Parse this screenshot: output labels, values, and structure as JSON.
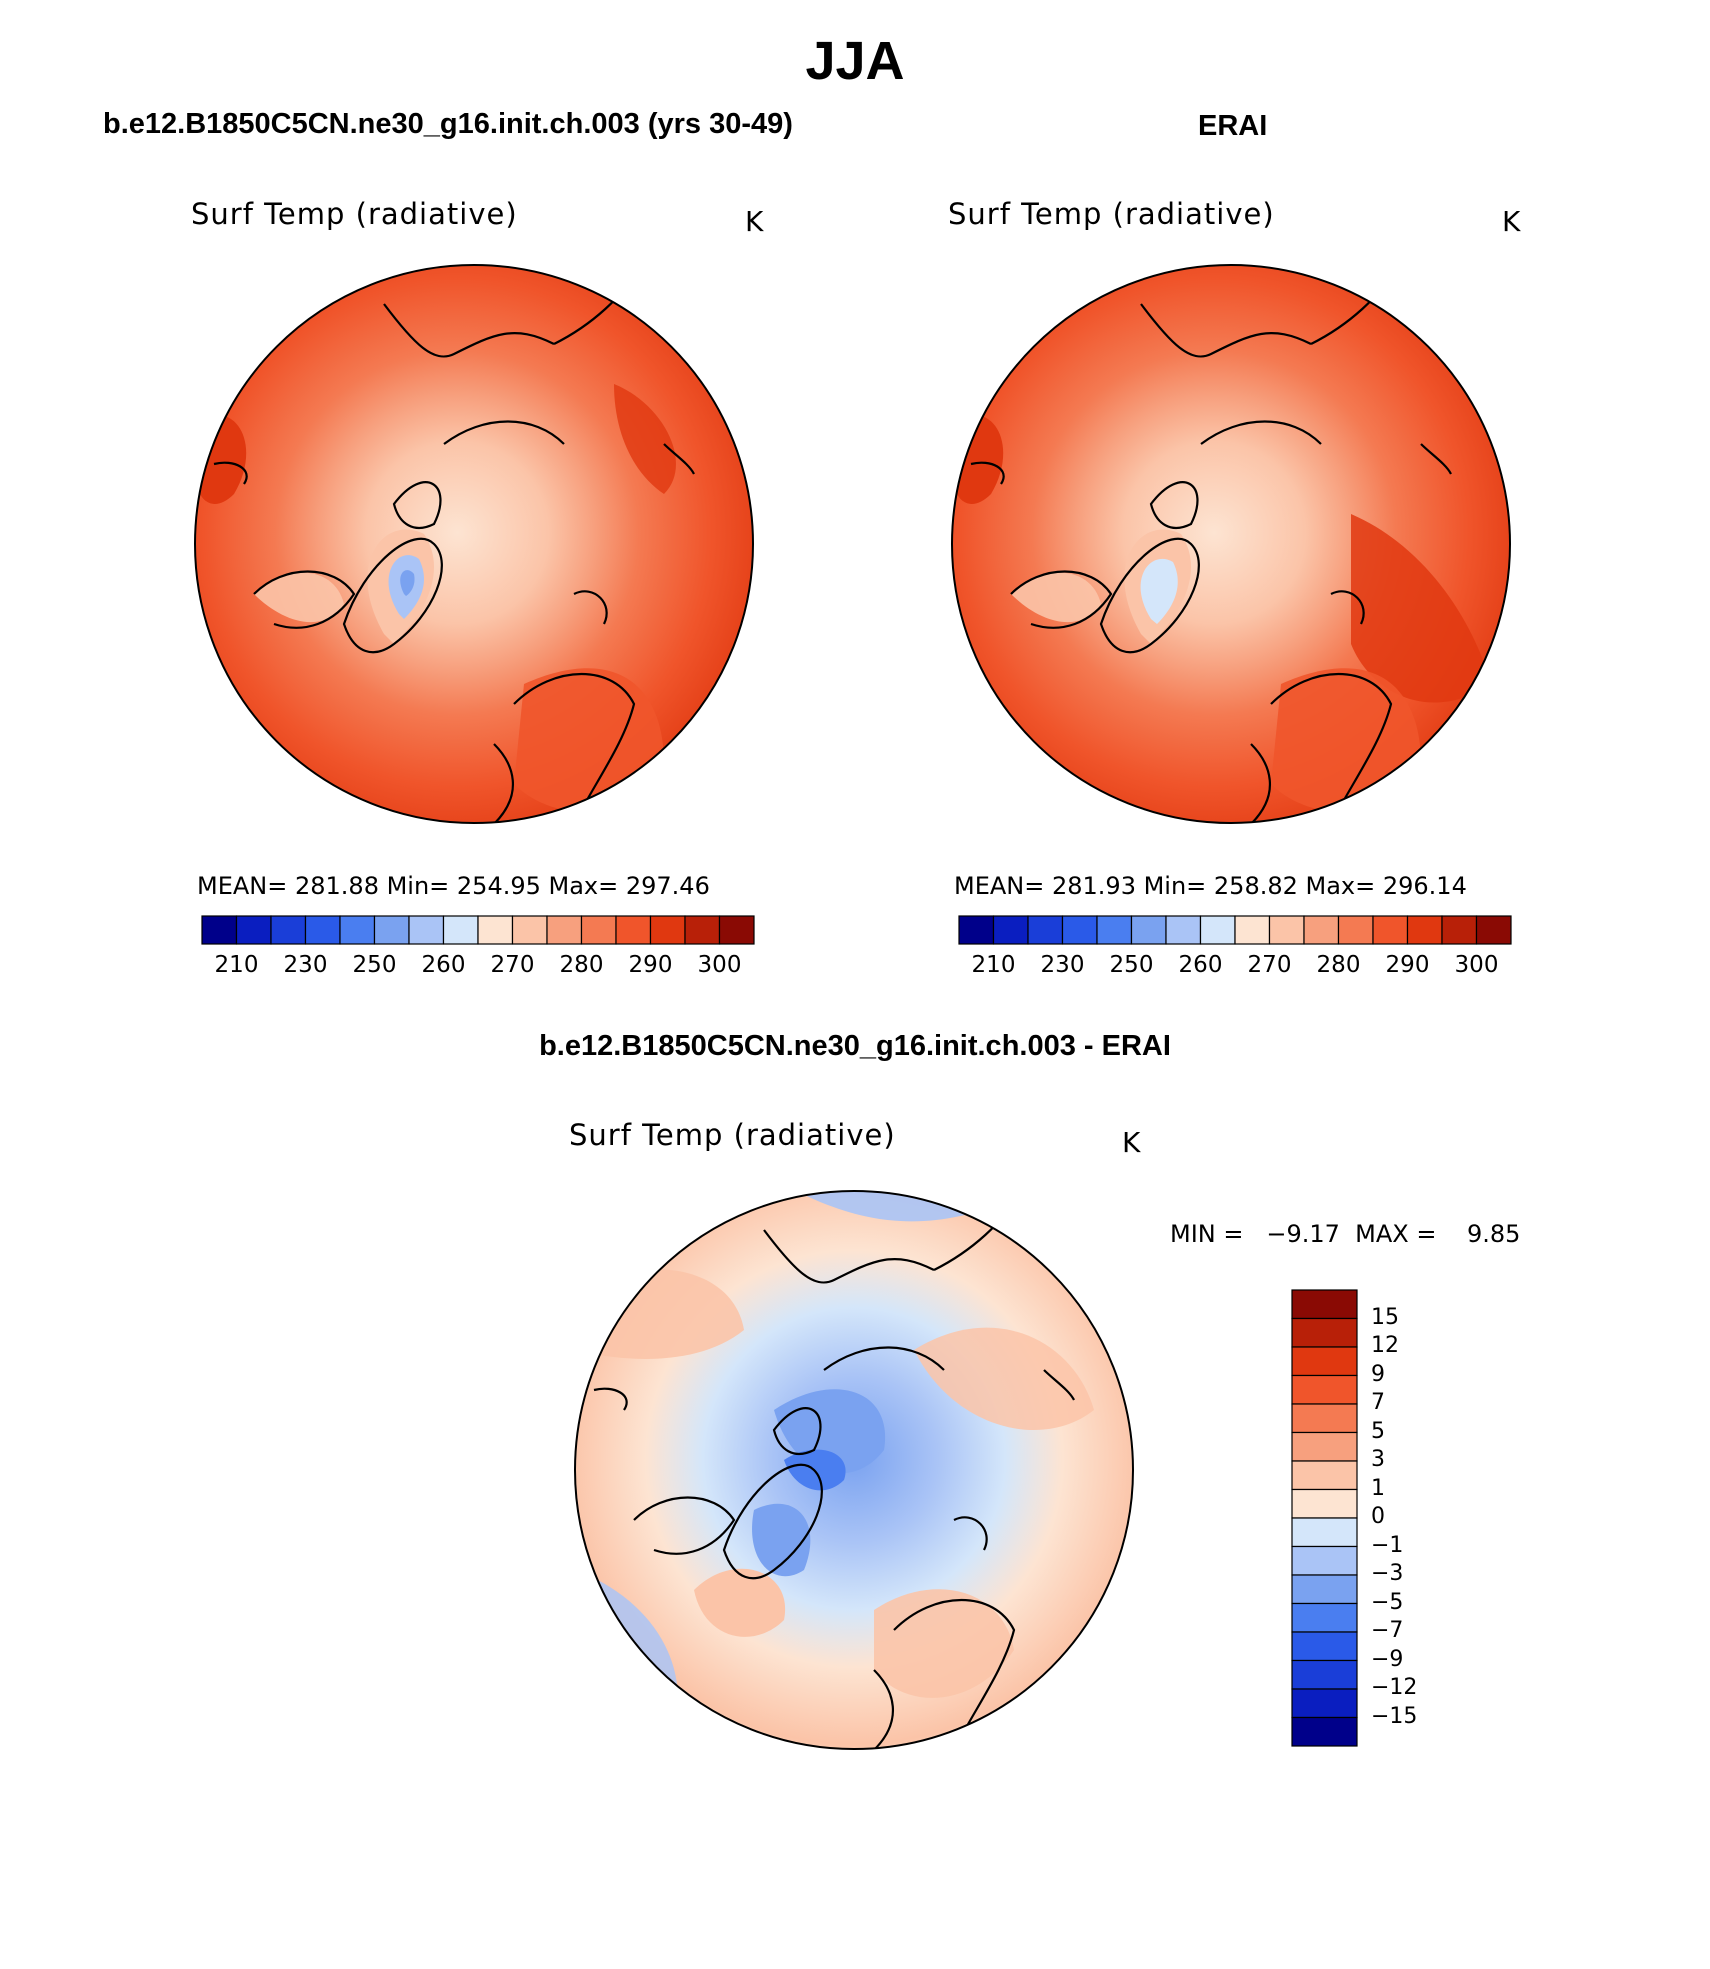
{
  "figure": {
    "title": "JJA"
  },
  "panels": [
    {
      "title": "b.e12.B1850C5CN.ne30_g16.init.ch.003 (yrs 30-49)",
      "variable": "Surf Temp (radiative)",
      "units": "K",
      "stats": "MEAN= 281.88   Min= 254.95   Max= 297.46"
    },
    {
      "title": "ERAI",
      "variable": "Surf Temp (radiative)",
      "units": "K",
      "stats": "MEAN= 281.93   Min= 258.82   Max= 296.14"
    },
    {
      "title": "b.e12.B1850C5CN.ne30_g16.init.ch.003 - ERAI",
      "variable": "Surf Temp (radiative)",
      "units": "K",
      "stats": "MIN =   −9.17  MAX =    9.85"
    }
  ],
  "colorbars": {
    "absolute": {
      "orientation": "horizontal",
      "tick_labels": [
        "210",
        "230",
        "250",
        "260",
        "270",
        "280",
        "290",
        "300"
      ],
      "colors": [
        "#00008a",
        "#0a1ec0",
        "#1a3ed8",
        "#2a5ae8",
        "#4a7ef0",
        "#7aa2f0",
        "#aac4f6",
        "#d4e6fa",
        "#fde4d2",
        "#fbc4a8",
        "#f7a07e",
        "#f47a52",
        "#f0552b",
        "#e03810",
        "#b82008",
        "#8a0a04"
      ]
    },
    "difference": {
      "orientation": "vertical",
      "tick_labels": [
        "15",
        "12",
        "9",
        "7",
        "5",
        "3",
        "1",
        "0",
        "−1",
        "−3",
        "−5",
        "−7",
        "−9",
        "−12",
        "−15"
      ],
      "colors": [
        "#8a0a04",
        "#b82008",
        "#e03810",
        "#f0552b",
        "#f47a52",
        "#f7a07e",
        "#fbc4a8",
        "#fde4d2",
        "#d4e6fa",
        "#aac4f6",
        "#7aa2f0",
        "#4a7ef0",
        "#2a5ae8",
        "#1a3ed8",
        "#0a1ec0",
        "#00008a"
      ]
    }
  },
  "chart_data": {
    "type": "heatmap",
    "projection": "north polar stereographic",
    "season": "JJA",
    "variable": "Surf Temp (radiative)",
    "units": "K",
    "maps": [
      {
        "name": "b.e12.B1850C5CN.ne30_g16.init.ch.003 (yrs 30-49)",
        "mean": 281.88,
        "min": 254.95,
        "max": 297.46
      },
      {
        "name": "ERAI",
        "mean": 281.93,
        "min": 258.82,
        "max": 296.14
      },
      {
        "name": "b.e12.B1850C5CN.ne30_g16.init.ch.003 - ERAI",
        "min": -9.17,
        "max": 9.85
      }
    ],
    "levels_absolute": [
      210,
      220,
      230,
      240,
      250,
      255,
      260,
      265,
      270,
      275,
      280,
      285,
      290,
      295,
      300
    ],
    "levels_difference": [
      -15,
      -12,
      -9,
      -7,
      -5,
      -3,
      -1,
      0,
      1,
      3,
      5,
      7,
      9,
      12,
      15
    ]
  }
}
